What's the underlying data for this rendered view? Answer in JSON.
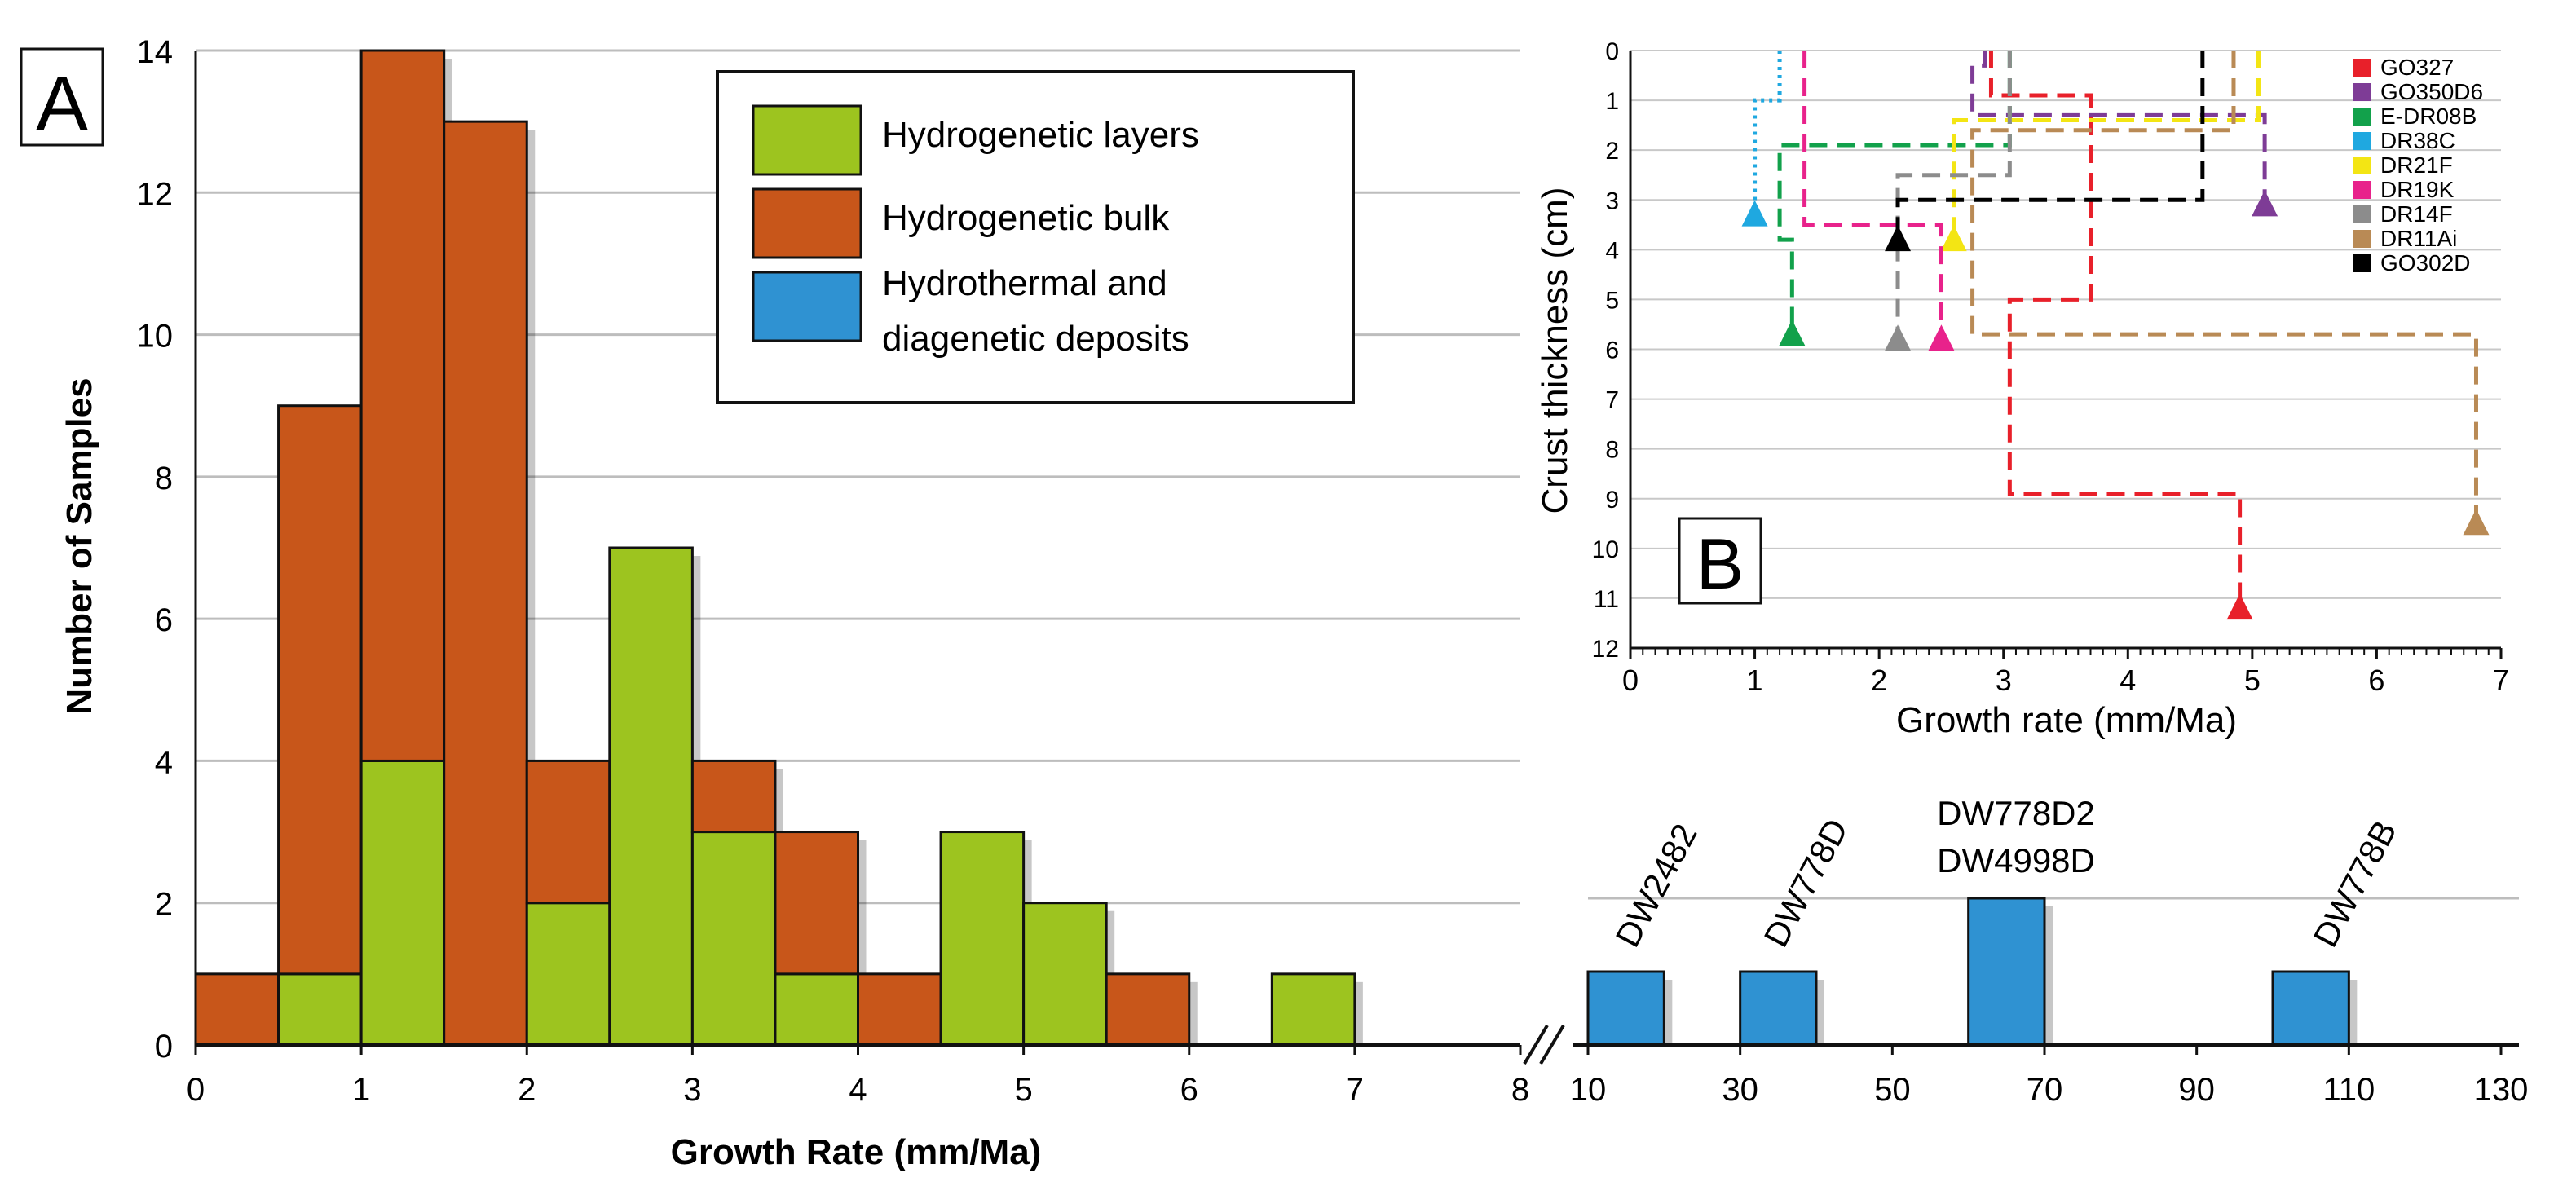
{
  "colors": {
    "hydro_layers": "#9DC41F",
    "hydro_bulk": "#C8561A",
    "hydrothermal": "#2F92D2",
    "grid": "#BDBDBD",
    "series": {
      "GO327": "#E8202A",
      "GO350D6": "#7E3C96",
      "E-DR08B": "#12A14B",
      "DR38C": "#1FA8E0",
      "DR21F": "#F3E514",
      "DR19K": "#E8228B",
      "DR14F": "#8C8C8C",
      "DR11Ai": "#B98A55",
      "GO302D": "#000000"
    }
  },
  "chart_data": [
    {
      "id": "A",
      "type": "bar",
      "panel_label": "A",
      "xlabel": "Growth Rate (mm/Ma)",
      "ylabel": "Number of Samples",
      "xlim": [
        0,
        8
      ],
      "ylim": [
        0,
        14
      ],
      "xticks": [
        0,
        1,
        2,
        3,
        4,
        5,
        6,
        7,
        8
      ],
      "yticks": [
        0,
        2,
        4,
        6,
        8,
        10,
        12,
        14
      ],
      "bin_width": 0.5,
      "bins": [
        {
          "x0": 0.0,
          "layers": 0,
          "bulk": 1
        },
        {
          "x0": 0.5,
          "layers": 1,
          "bulk": 8
        },
        {
          "x0": 1.0,
          "layers": 4,
          "bulk": 10
        },
        {
          "x0": 1.5,
          "layers": 0,
          "bulk": 13
        },
        {
          "x0": 2.0,
          "layers": 2,
          "bulk": 2
        },
        {
          "x0": 2.5,
          "layers": 7,
          "bulk": 0
        },
        {
          "x0": 3.0,
          "layers": 3,
          "bulk": 1
        },
        {
          "x0": 3.5,
          "layers": 1,
          "bulk": 2
        },
        {
          "x0": 4.0,
          "layers": 0,
          "bulk": 1
        },
        {
          "x0": 4.5,
          "layers": 3,
          "bulk": 0
        },
        {
          "x0": 5.0,
          "layers": 2,
          "bulk": 0
        },
        {
          "x0": 5.5,
          "layers": 0,
          "bulk": 1
        },
        {
          "x0": 6.5,
          "layers": 1,
          "bulk": 0
        }
      ],
      "legend": [
        {
          "key": "hydro_layers",
          "label": "Hydrogenetic layers"
        },
        {
          "key": "hydro_bulk",
          "label": "Hydrogenetic bulk"
        },
        {
          "key": "hydrothermal",
          "label_line1": "Hydrothermal and",
          "label_line2": "diagenetic deposits"
        }
      ]
    },
    {
      "id": "A-break",
      "type": "bar",
      "axis_break": "//",
      "xlim": [
        10,
        130
      ],
      "ylim": [
        0,
        2.25
      ],
      "xticks": [
        10,
        30,
        50,
        70,
        90,
        110,
        130
      ],
      "bars": [
        {
          "x0": 10,
          "x1": 20,
          "value": 1
        },
        {
          "x0": 30,
          "x1": 40,
          "value": 1
        },
        {
          "x0": 60,
          "x1": 70,
          "value": 2
        },
        {
          "x0": 100,
          "x1": 110,
          "value": 1
        }
      ],
      "labels": [
        {
          "text": "DW2482",
          "rotated": true
        },
        {
          "text": "DW778D",
          "rotated": true
        },
        {
          "text": "DW778D2",
          "rotated": false
        },
        {
          "text": "DW4998D",
          "rotated": false
        },
        {
          "text": "DW778B",
          "rotated": true
        }
      ]
    },
    {
      "id": "B",
      "type": "line",
      "panel_label": "B",
      "xlabel": "Growth rate (mm/Ma)",
      "ylabel": "Crust thickness (cm)",
      "xlim": [
        0,
        7
      ],
      "ylim": [
        0,
        12
      ],
      "y_inverted": true,
      "xticks": [
        0,
        1,
        2,
        3,
        4,
        5,
        6,
        7
      ],
      "yticks": [
        0,
        1,
        2,
        3,
        4,
        5,
        6,
        7,
        8,
        9,
        10,
        11,
        12
      ],
      "series": [
        {
          "name": "GO327",
          "dash": "dash",
          "points": [
            [
              2.9,
              0
            ],
            [
              2.9,
              0.9
            ],
            [
              3.7,
              0.9
            ],
            [
              3.7,
              5.0
            ],
            [
              3.05,
              5.0
            ],
            [
              3.05,
              8.9
            ],
            [
              4.9,
              8.9
            ],
            [
              4.9,
              11.2
            ]
          ]
        },
        {
          "name": "GO350D6",
          "dash": "dash",
          "points": [
            [
              2.85,
              0
            ],
            [
              2.85,
              0.3
            ],
            [
              2.75,
              0.3
            ],
            [
              2.75,
              1.3
            ],
            [
              5.1,
              1.3
            ],
            [
              5.1,
              3.1
            ]
          ]
        },
        {
          "name": "E-DR08B",
          "dash": "dash",
          "points": [
            [
              3.05,
              0
            ],
            [
              3.05,
              1.9
            ],
            [
              1.2,
              1.9
            ],
            [
              1.2,
              3.8
            ],
            [
              1.3,
              3.8
            ],
            [
              1.3,
              5.7
            ]
          ]
        },
        {
          "name": "DR38C",
          "dash": "dot",
          "points": [
            [
              1.2,
              0
            ],
            [
              1.2,
              1.0
            ],
            [
              1.0,
              1.0
            ],
            [
              1.0,
              3.3
            ]
          ]
        },
        {
          "name": "DR21F",
          "dash": "dash",
          "points": [
            [
              5.05,
              0
            ],
            [
              5.05,
              1.4
            ],
            [
              2.6,
              1.4
            ],
            [
              2.6,
              3.8
            ]
          ]
        },
        {
          "name": "DR19K",
          "dash": "dash",
          "points": [
            [
              1.4,
              0
            ],
            [
              1.4,
              3.5
            ],
            [
              2.5,
              3.5
            ],
            [
              2.5,
              5.8
            ]
          ]
        },
        {
          "name": "DR14F",
          "dash": "dash",
          "points": [
            [
              3.05,
              0
            ],
            [
              3.05,
              2.5
            ],
            [
              2.15,
              2.5
            ],
            [
              2.15,
              5.8
            ]
          ]
        },
        {
          "name": "DR11Ai",
          "dash": "dash",
          "points": [
            [
              4.85,
              0
            ],
            [
              4.85,
              1.6
            ],
            [
              2.75,
              1.6
            ],
            [
              2.75,
              5.7
            ],
            [
              6.8,
              5.7
            ],
            [
              6.8,
              9.5
            ]
          ]
        },
        {
          "name": "GO302D",
          "dash": "dash",
          "points": [
            [
              4.6,
              0
            ],
            [
              4.6,
              3.0
            ],
            [
              2.15,
              3.0
            ],
            [
              2.15,
              3.8
            ]
          ]
        }
      ]
    }
  ]
}
